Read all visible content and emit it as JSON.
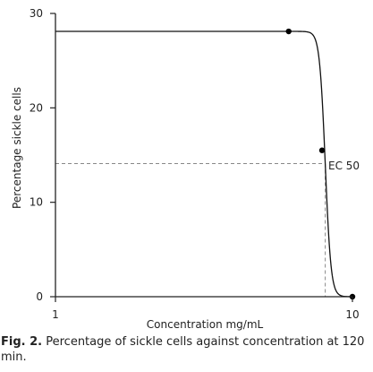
{
  "chart_data": {
    "type": "line",
    "title": "",
    "xlabel": "Concentration mg/mL",
    "ylabel": "Percentage sickle cells",
    "x_scale": "log",
    "xlim": [
      1,
      10
    ],
    "ylim": [
      0,
      30
    ],
    "x_ticks": [
      1,
      10
    ],
    "x_tick_labels": [
      "1",
      "10"
    ],
    "y_ticks": [
      0,
      10,
      20,
      30
    ],
    "y_tick_labels": [
      "0",
      "10",
      "20",
      "30"
    ],
    "grid": false,
    "series": [
      {
        "name": "",
        "points": [
          {
            "x": 6.1,
            "y": 28.1
          },
          {
            "x": 7.9,
            "y": 15.5
          },
          {
            "x": 10.0,
            "y": 0
          }
        ],
        "curve": {
          "top": 28.1,
          "bottom": 0,
          "ec50": 8.1,
          "hill": 45,
          "x_start": 1,
          "x_end": 10
        }
      }
    ],
    "ec50": {
      "x": 8.1,
      "y": 14.1,
      "label": "EC 50"
    }
  },
  "caption": {
    "label": "Fig. 2.",
    "text": "Percentage of sickle cells against concentration at 120 min."
  }
}
